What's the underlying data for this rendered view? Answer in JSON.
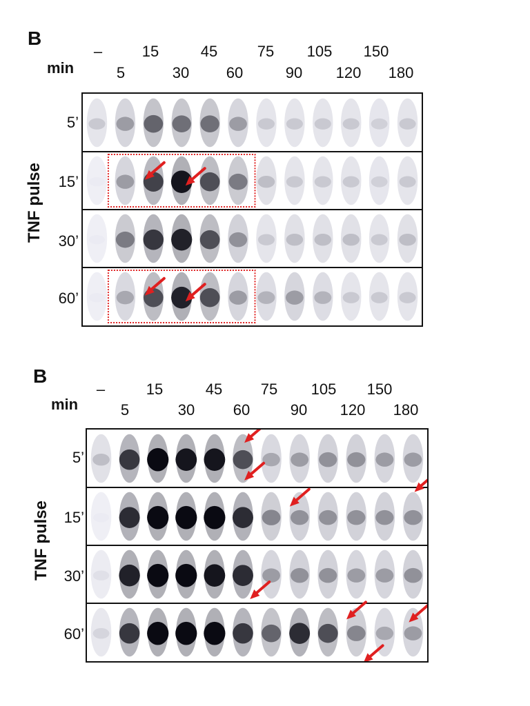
{
  "panels": [
    {
      "letter": "B",
      "min_label": "min",
      "axis_title": "TNF pulse",
      "header_top": [
        "–",
        "15",
        "45",
        "75",
        "105",
        "150"
      ],
      "header_bottom": [
        "5",
        "30",
        "60",
        "90",
        "120",
        "180"
      ],
      "rows": [
        "5’",
        "15’",
        "30’",
        "60’"
      ],
      "intensity": [
        [
          0.15,
          0.35,
          0.6,
          0.55,
          0.55,
          0.35,
          0.15,
          0.15,
          0.15,
          0.15,
          0.12,
          0.15
        ],
        [
          0.0,
          0.35,
          0.75,
          0.95,
          0.7,
          0.5,
          0.2,
          0.15,
          0.15,
          0.15,
          0.12,
          0.15
        ],
        [
          0.0,
          0.5,
          0.8,
          0.9,
          0.7,
          0.4,
          0.15,
          0.2,
          0.2,
          0.2,
          0.15,
          0.2
        ],
        [
          0.0,
          0.3,
          0.7,
          0.9,
          0.7,
          0.35,
          0.25,
          0.35,
          0.25,
          0.15,
          0.15,
          0.15
        ]
      ],
      "highlight_rows": [
        1,
        3
      ],
      "arrow_color": "#e02020",
      "box_color": "#e02020"
    },
    {
      "letter": "B",
      "min_label": "min",
      "axis_title": "TNF pulse",
      "header_top": [
        "–",
        "15",
        "45",
        "75",
        "105",
        "150"
      ],
      "header_bottom": [
        "5",
        "30",
        "60",
        "90",
        "120",
        "180"
      ],
      "rows": [
        "5’",
        "15’",
        "30’",
        "60’"
      ],
      "intensity": [
        [
          0.2,
          0.8,
          1.0,
          0.95,
          0.95,
          0.7,
          0.3,
          0.35,
          0.4,
          0.4,
          0.35,
          0.35
        ],
        [
          0.0,
          0.85,
          1.0,
          1.0,
          1.0,
          0.85,
          0.45,
          0.4,
          0.4,
          0.4,
          0.4,
          0.4
        ],
        [
          0.05,
          0.9,
          1.0,
          1.0,
          0.95,
          0.85,
          0.35,
          0.4,
          0.4,
          0.35,
          0.35,
          0.4
        ],
        [
          0.1,
          0.8,
          1.0,
          1.0,
          1.0,
          0.8,
          0.6,
          0.85,
          0.7,
          0.45,
          0.3,
          0.35
        ]
      ],
      "arrow_color": "#e02020"
    }
  ]
}
